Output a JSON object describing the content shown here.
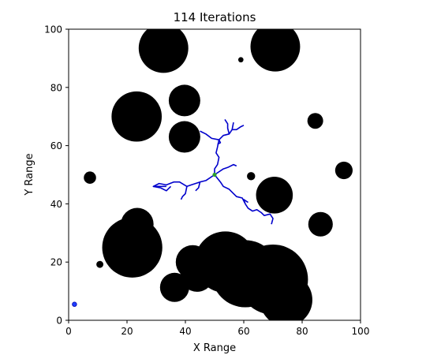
{
  "chart_data": {
    "type": "scatter",
    "title": "114 Iterations",
    "xlabel": "X Range",
    "ylabel": "Y Range",
    "xlim": [
      0,
      100
    ],
    "ylim": [
      0,
      100
    ],
    "xticks": [
      0,
      20,
      40,
      60,
      80,
      100
    ],
    "yticks": [
      0,
      20,
      40,
      60,
      80,
      100
    ],
    "grid": false,
    "legend": "none",
    "colors": {
      "obstacle": "#000000",
      "tree": "#0000cc",
      "start": "#2ca02c",
      "goal": "#1f3fff"
    },
    "obstacles": [
      {
        "x": 32.5,
        "y": 93.5,
        "r": 8.5
      },
      {
        "x": 70.8,
        "y": 94.0,
        "r": 8.5
      },
      {
        "x": 59.0,
        "y": 89.5,
        "r": 0.9
      },
      {
        "x": 23.3,
        "y": 70.0,
        "r": 8.6
      },
      {
        "x": 39.7,
        "y": 75.5,
        "r": 5.4
      },
      {
        "x": 39.7,
        "y": 63.0,
        "r": 5.4
      },
      {
        "x": 84.5,
        "y": 68.5,
        "r": 2.7
      },
      {
        "x": 7.3,
        "y": 49.0,
        "r": 2.1
      },
      {
        "x": 62.5,
        "y": 49.5,
        "r": 1.4
      },
      {
        "x": 94.3,
        "y": 51.5,
        "r": 3.0
      },
      {
        "x": 70.5,
        "y": 43.0,
        "r": 6.3
      },
      {
        "x": 86.3,
        "y": 33.0,
        "r": 4.2
      },
      {
        "x": 23.5,
        "y": 33.0,
        "r": 5.6
      },
      {
        "x": 21.8,
        "y": 25.0,
        "r": 10.3
      },
      {
        "x": 10.7,
        "y": 19.2,
        "r": 1.2
      },
      {
        "x": 42.5,
        "y": 20.0,
        "r": 5.8
      },
      {
        "x": 44.0,
        "y": 15.5,
        "r": 5.7
      },
      {
        "x": 36.3,
        "y": 11.3,
        "r": 5.0
      },
      {
        "x": 53.7,
        "y": 20.0,
        "r": 10.5
      },
      {
        "x": 60.5,
        "y": 16.0,
        "r": 11.5
      },
      {
        "x": 70.0,
        "y": 14.0,
        "r": 12.0
      },
      {
        "x": 74.5,
        "y": 7.0,
        "r": 9.0
      }
    ],
    "tree_branches": [
      [
        [
          50,
          50
        ],
        [
          50,
          52
        ],
        [
          51,
          53.5
        ],
        [
          51.5,
          56
        ],
        [
          50.5,
          57.5
        ],
        [
          51,
          59.5
        ],
        [
          51.5,
          62
        ]
      ],
      [
        [
          51.5,
          62
        ],
        [
          53,
          63.5
        ],
        [
          55,
          64
        ],
        [
          56,
          65.5
        ],
        [
          56.5,
          68
        ]
      ],
      [
        [
          56,
          65.5
        ],
        [
          57.5,
          65.5
        ],
        [
          59,
          66.5
        ],
        [
          60,
          67
        ]
      ],
      [
        [
          55,
          64
        ],
        [
          54.5,
          66
        ],
        [
          54.5,
          67.5
        ],
        [
          53.5,
          69
        ]
      ],
      [
        [
          51.5,
          62
        ],
        [
          49,
          62.5
        ],
        [
          47,
          64
        ],
        [
          45,
          65
        ]
      ],
      [
        [
          51.5,
          62
        ],
        [
          52,
          61
        ],
        [
          51,
          60.5
        ]
      ],
      [
        [
          50,
          50
        ],
        [
          53,
          52
        ],
        [
          54.5,
          52.5
        ],
        [
          56.5,
          53.5
        ],
        [
          57.5,
          53
        ]
      ],
      [
        [
          50,
          50
        ],
        [
          47,
          48
        ],
        [
          45,
          47.5
        ],
        [
          42,
          46.5
        ],
        [
          40.5,
          46
        ]
      ],
      [
        [
          45,
          47.5
        ],
        [
          44.5,
          45.5
        ],
        [
          43.5,
          44.5
        ]
      ],
      [
        [
          40.5,
          46
        ],
        [
          40,
          43.5
        ],
        [
          39,
          42.5
        ],
        [
          38.5,
          41.5
        ]
      ],
      [
        [
          40.5,
          46
        ],
        [
          38,
          47.5
        ],
        [
          36,
          47.5
        ],
        [
          33.5,
          46.5
        ],
        [
          31,
          47
        ],
        [
          29,
          46
        ],
        [
          33.5,
          46
        ]
      ],
      [
        [
          29,
          46
        ],
        [
          31.5,
          45.5
        ],
        [
          33.5,
          44.5
        ],
        [
          35,
          46
        ]
      ],
      [
        [
          50,
          50
        ],
        [
          52,
          47.5
        ],
        [
          53,
          46
        ],
        [
          55,
          45
        ],
        [
          57.5,
          42.5
        ],
        [
          59.5,
          42
        ],
        [
          60.5,
          40
        ]
      ],
      [
        [
          60.5,
          40
        ],
        [
          61.5,
          38.5
        ],
        [
          63,
          37.5
        ],
        [
          64.5,
          38
        ],
        [
          66,
          37
        ],
        [
          67,
          36
        ],
        [
          69,
          36.5
        ],
        [
          70,
          35
        ],
        [
          69.5,
          33
        ]
      ],
      [
        [
          60.5,
          40
        ],
        [
          60,
          41.5
        ],
        [
          61.5,
          40.5
        ]
      ]
    ],
    "start": {
      "x": 50.0,
      "y": 50.0
    },
    "goal": {
      "x": 2.0,
      "y": 5.5
    }
  }
}
